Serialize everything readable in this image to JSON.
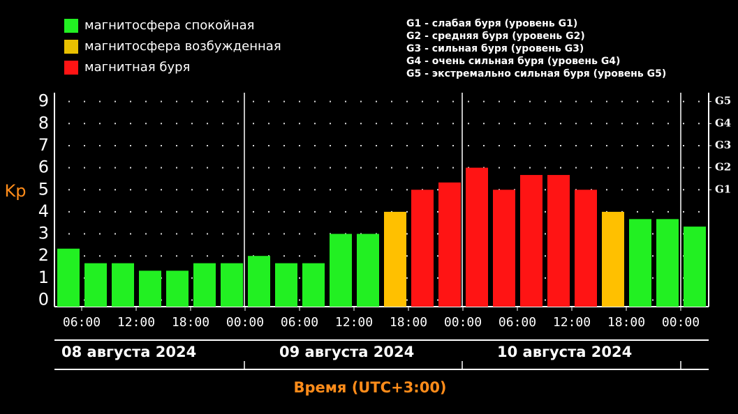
{
  "chart_data": {
    "type": "bar",
    "values": [
      2.33,
      1.67,
      1.67,
      1.33,
      1.33,
      1.67,
      1.67,
      2.0,
      1.67,
      1.67,
      3.0,
      3.0,
      4.0,
      5.0,
      5.33,
      6.0,
      5.0,
      5.67,
      5.67,
      5.0,
      4.0,
      3.67,
      3.67,
      3.33
    ],
    "colors": [
      "#22f022",
      "#22f022",
      "#22f022",
      "#22f022",
      "#22f022",
      "#22f022",
      "#22f022",
      "#22f022",
      "#22f022",
      "#22f022",
      "#22f022",
      "#22f022",
      "#ffc000",
      "#ff1414",
      "#ff1414",
      "#ff1414",
      "#ff1414",
      "#ff1414",
      "#ff1414",
      "#ff1414",
      "#ffc000",
      "#22f022",
      "#22f022",
      "#22f022"
    ],
    "ylabel": "Kp",
    "xlabel": "Время (UTC+3:00)",
    "ylim": [
      -0.3,
      9.4
    ],
    "yticks": [
      0,
      1,
      2,
      3,
      4,
      5,
      6,
      7,
      8,
      9
    ],
    "y2ticks": [
      {
        "value": 5,
        "label": "G1"
      },
      {
        "value": 6,
        "label": "G2"
      },
      {
        "value": 7,
        "label": "G3"
      },
      {
        "value": 8,
        "label": "G4"
      },
      {
        "value": 9,
        "label": "G5"
      }
    ],
    "grid": true,
    "xtick_labels": [
      "06:00",
      "12:00",
      "18:00",
      "00:00",
      "06:00",
      "12:00",
      "18:00",
      "00:00",
      "06:00",
      "12:00",
      "18:00",
      "00:00"
    ],
    "days": [
      "08 августа 2024",
      "09 августа 2024",
      "10 августа 2024"
    ],
    "legend": [
      {
        "name": "магнитосфера спокойная",
        "color": "#22f022"
      },
      {
        "name": "магнитосфера возбужденная",
        "color": "#e8c000"
      },
      {
        "name": "магнитная буря",
        "color": "#ff1414"
      }
    ],
    "storm_levels": [
      "G1 - слабая буря (уровень G1)",
      "G2 - средняя буря (уровень G2)",
      "G3 - сильная буря (уровень G3)",
      "G4 - очень сильная буря (уровень G4)",
      "G5 - экстремально сильная буря (уровень G5)"
    ]
  }
}
